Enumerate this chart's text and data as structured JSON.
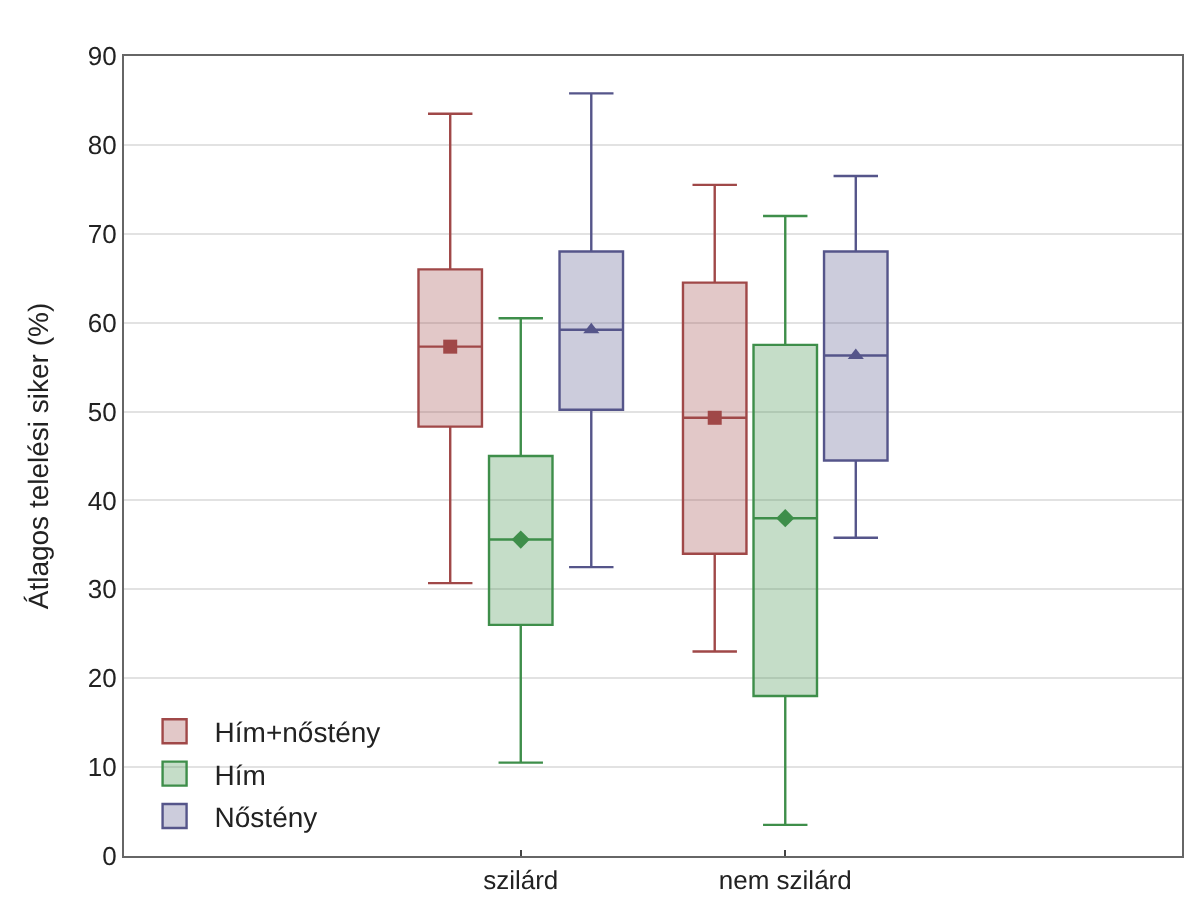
{
  "chart_data": {
    "type": "box",
    "ylabel": "Átlagos telelési siker (%)",
    "categories": [
      "szilárd",
      "nem szilárd"
    ],
    "ylim": [
      0,
      90
    ],
    "yticks": [
      0,
      10,
      20,
      30,
      40,
      50,
      60,
      70,
      80,
      90
    ],
    "grid": "y",
    "legend": "bottom left",
    "series": [
      {
        "name": "Hím+nőstény",
        "color": "#a04848",
        "marker": "square",
        "boxes": [
          {
            "low": 30.7,
            "q1": 48.3,
            "median": 57.3,
            "q3": 66,
            "high": 83.5,
            "mean": 57.3
          },
          {
            "low": 23,
            "q1": 34,
            "median": 49.3,
            "q3": 64.5,
            "high": 75.5,
            "mean": 49.3
          }
        ]
      },
      {
        "name": "Hím",
        "color": "#3e8e4a",
        "marker": "diamond",
        "boxes": [
          {
            "low": 10.5,
            "q1": 26,
            "median": 35.6,
            "q3": 45,
            "high": 60.5,
            "mean": 35.6
          },
          {
            "low": 3.5,
            "q1": 18,
            "median": 38,
            "q3": 57.5,
            "high": 72,
            "mean": 38
          }
        ]
      },
      {
        "name": "Nőstény",
        "color": "#55558a",
        "marker": "triangle",
        "boxes": [
          {
            "low": 32.5,
            "q1": 50.2,
            "median": 59.2,
            "q3": 68,
            "high": 85.8,
            "mean": 59.2
          },
          {
            "low": 35.8,
            "q1": 44.5,
            "median": 56.3,
            "q3": 68,
            "high": 76.5,
            "mean": 56.3
          }
        ]
      }
    ]
  }
}
